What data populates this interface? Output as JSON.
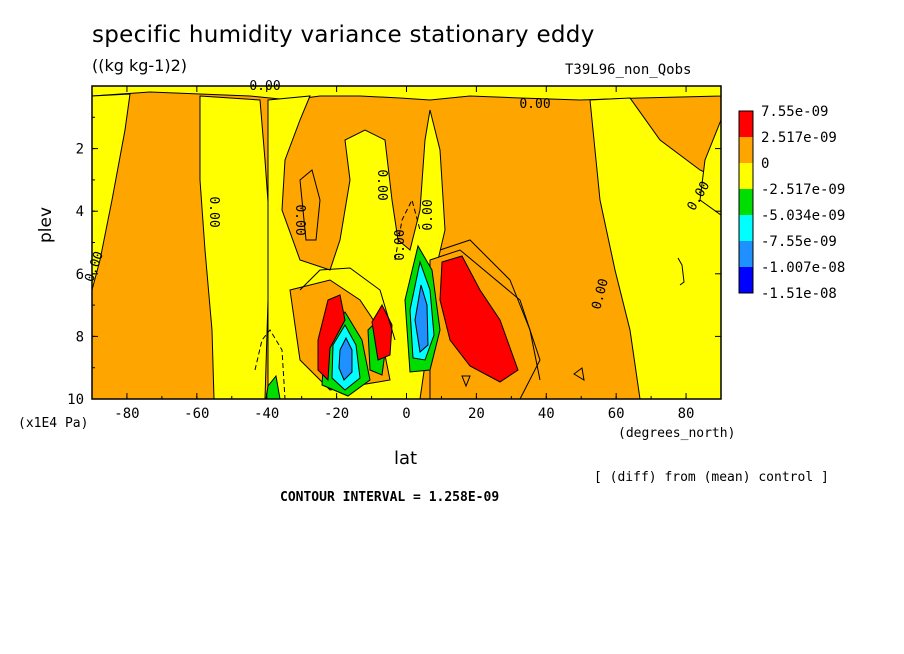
{
  "chart_data": {
    "type": "heatmap",
    "title": "specific humidity variance stationary eddy",
    "units": "((kg kg-1)2)",
    "experiment": "T39L96_non_Qobs",
    "xlabel": "lat",
    "xunit": "(degrees_north)",
    "ylabel": "plev",
    "yunit": "(x1E4 Pa)",
    "xlim": [
      -90,
      90
    ],
    "ylim": [
      10,
      0
    ],
    "x_ticks": [
      "-80",
      "-60",
      "-40",
      "-20",
      "0",
      "20",
      "40",
      "60",
      "80"
    ],
    "y_ticks": [
      "2",
      "4",
      "6",
      "8",
      "10"
    ],
    "legend": {
      "position": "right",
      "levels": [
        "7.55e-09",
        "2.517e-09",
        "0",
        "-2.517e-09",
        "-5.034e-09",
        "-7.55e-09",
        "-1.007e-08",
        "-1.51e-08"
      ],
      "colors": [
        "#ff0000",
        "#ffa500",
        "#ffff00",
        "#00dd00",
        "#00ffff",
        "#1e90ff",
        "#0000ff"
      ]
    },
    "contour_labels": [
      "0.00",
      "0.00",
      "0.00",
      "0.00",
      "0.00",
      "0.00",
      "0.00",
      "0.00",
      "0.00",
      "0.00"
    ],
    "note": "[ (diff) from (mean) control ]",
    "contour_interval": "CONTOUR INTERVAL = 1.258E-09"
  }
}
